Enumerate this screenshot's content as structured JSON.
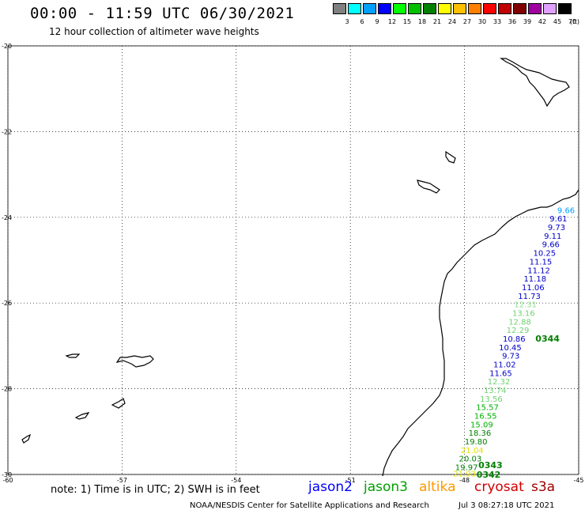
{
  "header": {
    "title": "00:00 - 11:59 UTC 06/30/2021",
    "subtitle": "12 hour collection of altimeter wave heights"
  },
  "legend": {
    "unit": "(ft)",
    "items": [
      {
        "label": "3",
        "color": "#808080"
      },
      {
        "label": "6",
        "color": "#00ffff"
      },
      {
        "label": "9",
        "color": "#00a0ff"
      },
      {
        "label": "12",
        "color": "#0000ff"
      },
      {
        "label": "15",
        "color": "#00ff00"
      },
      {
        "label": "18",
        "color": "#00c000"
      },
      {
        "label": "21",
        "color": "#008000"
      },
      {
        "label": "24",
        "color": "#ffff00"
      },
      {
        "label": "27",
        "color": "#ffc000"
      },
      {
        "label": "30",
        "color": "#ff8000"
      },
      {
        "label": "33",
        "color": "#ff0000"
      },
      {
        "label": "36",
        "color": "#c00000"
      },
      {
        "label": "39",
        "color": "#800000"
      },
      {
        "label": "42",
        "color": "#a000a0"
      },
      {
        "label": "45",
        "color": "#e0a0ff"
      },
      {
        "label": "70",
        "color": "#000000"
      }
    ]
  },
  "axes": {
    "lat_labels": [
      "-20",
      "-22",
      "-24",
      "-26",
      "-28",
      "-30"
    ],
    "lon_labels": [
      "-60",
      "-57",
      "-54",
      "-51",
      "-48",
      "-45"
    ]
  },
  "observations": [
    {
      "value": "9.66",
      "color": "#00a0ff",
      "lat": -23.9,
      "lon": -45.1
    },
    {
      "value": "9.61",
      "color": "#0000cc",
      "lat": -24.1,
      "lon": -45.3
    },
    {
      "value": "9.73",
      "color": "#0000cc",
      "lat": -24.3,
      "lon": -45.35
    },
    {
      "value": "9.11",
      "color": "#0000cc",
      "lat": -24.5,
      "lon": -45.45
    },
    {
      "value": "9.66",
      "color": "#0000cc",
      "lat": -24.7,
      "lon": -45.5
    },
    {
      "value": "10.25",
      "color": "#0000cc",
      "lat": -24.9,
      "lon": -45.6
    },
    {
      "value": "11.15",
      "color": "#0000cc",
      "lat": -25.1,
      "lon": -45.7
    },
    {
      "value": "11.12",
      "color": "#0000cc",
      "lat": -25.3,
      "lon": -45.75
    },
    {
      "value": "11.18",
      "color": "#0000cc",
      "lat": -25.5,
      "lon": -45.85
    },
    {
      "value": "11.06",
      "color": "#0000cc",
      "lat": -25.7,
      "lon": -45.9
    },
    {
      "value": "11.73",
      "color": "#0000cc",
      "lat": -25.9,
      "lon": -46.0
    },
    {
      "value": "12.31",
      "color": "#90e090",
      "lat": -26.1,
      "lon": -46.1
    },
    {
      "value": "13.16",
      "color": "#70d070",
      "lat": -26.3,
      "lon": -46.15
    },
    {
      "value": "12.88",
      "color": "#70d070",
      "lat": -26.5,
      "lon": -46.25
    },
    {
      "value": "12.29",
      "color": "#70d070",
      "lat": -26.7,
      "lon": -46.3
    },
    {
      "value": "10.86",
      "color": "#0000cc",
      "lat": -26.9,
      "lon": -46.4
    },
    {
      "value": "10.45",
      "color": "#0000cc",
      "lat": -27.1,
      "lon": -46.5
    },
    {
      "value": "9.73",
      "color": "#0000cc",
      "lat": -27.3,
      "lon": -46.55
    },
    {
      "value": "11.02",
      "color": "#0000cc",
      "lat": -27.5,
      "lon": -46.65
    },
    {
      "value": "11.65",
      "color": "#0000cc",
      "lat": -27.7,
      "lon": -46.75
    },
    {
      "value": "12.32",
      "color": "#70d070",
      "lat": -27.9,
      "lon": -46.8
    },
    {
      "value": "13.74",
      "color": "#70d070",
      "lat": -28.1,
      "lon": -46.9
    },
    {
      "value": "13.56",
      "color": "#70d070",
      "lat": -28.3,
      "lon": -47.0
    },
    {
      "value": "15.57",
      "color": "#00b000",
      "lat": -28.5,
      "lon": -47.1
    },
    {
      "value": "16.55",
      "color": "#00b000",
      "lat": -28.7,
      "lon": -47.15
    },
    {
      "value": "15.09",
      "color": "#00b000",
      "lat": -28.9,
      "lon": -47.25
    },
    {
      "value": "18.36",
      "color": "#008000",
      "lat": -29.1,
      "lon": -47.3
    },
    {
      "value": "19.80",
      "color": "#008000",
      "lat": -29.3,
      "lon": -47.4
    },
    {
      "value": "21.04",
      "color": "#e0e000",
      "lat": -29.5,
      "lon": -47.5
    },
    {
      "value": "20.03",
      "color": "#008000",
      "lat": -29.7,
      "lon": -47.55
    },
    {
      "value": "19.97",
      "color": "#008000",
      "lat": -29.9,
      "lon": -47.65
    },
    {
      "value": "21.93",
      "color": "#e0e000",
      "lat": -30.05,
      "lon": -47.7
    }
  ],
  "pass_times": [
    {
      "label": "0344",
      "color": "#008000",
      "lat": -26.9,
      "lon": -45.5
    },
    {
      "label": "0343",
      "color": "#008000",
      "lat": -29.85,
      "lon": -47.0
    },
    {
      "label": "0342",
      "color": "#008000",
      "lat": -30.07,
      "lon": -47.05
    }
  ],
  "footer": {
    "note": "note: 1) Time is in UTC; 2) SWH is in feet",
    "satellites": [
      {
        "name": "jason2",
        "color": "#0000ff"
      },
      {
        "name": "jason3",
        "color": "#00a000"
      },
      {
        "name": "altika",
        "color": "#ff9900"
      },
      {
        "name": "cryosat",
        "color": "#d00000"
      },
      {
        "name": "s3a",
        "color": "#a00000"
      }
    ],
    "credit": "NOAA/NESDIS Center for Satellite Applications and Research",
    "date": "Jul  3 08:27:18 UTC 2021"
  }
}
